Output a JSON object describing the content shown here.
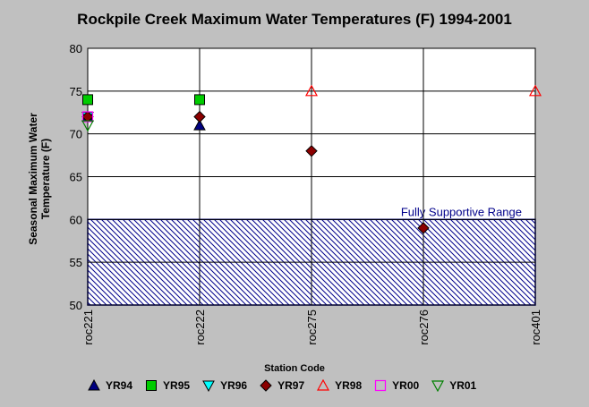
{
  "chart_data": {
    "type": "scatter",
    "title": "Rockpile Creek Maximum Water Temperatures (F) 1994-2001",
    "xlabel": "Station Code",
    "ylabel_lines": [
      "Seasonal Maximum Water",
      "Temperature  (F)"
    ],
    "categories": [
      "roc221",
      "roc222",
      "roc275",
      "roc276",
      "roc401"
    ],
    "ylim": [
      50,
      80
    ],
    "yticks": [
      50,
      55,
      60,
      65,
      70,
      75,
      80
    ],
    "grid": true,
    "band": {
      "label": "Fully Supportive Range",
      "from": 50,
      "to": 60,
      "color": "#00008b"
    },
    "legend_position": "bottom",
    "series": [
      {
        "name": "YR94",
        "marker": "triangle-up",
        "color": "#000080",
        "filled": true,
        "values": [
          72,
          71,
          null,
          null,
          null
        ]
      },
      {
        "name": "YR95",
        "marker": "square",
        "color": "#00cc00",
        "filled": true,
        "values": [
          74,
          74,
          null,
          null,
          null
        ]
      },
      {
        "name": "YR96",
        "marker": "triangle-down",
        "color": "#00ffff",
        "filled": true,
        "values": [
          72,
          null,
          null,
          null,
          null
        ]
      },
      {
        "name": "YR97",
        "marker": "diamond",
        "color": "#8b0000",
        "filled": true,
        "values": [
          72,
          72,
          68,
          59,
          null
        ]
      },
      {
        "name": "YR98",
        "marker": "triangle-up",
        "color": "#ff0000",
        "filled": false,
        "values": [
          null,
          null,
          75,
          null,
          75
        ]
      },
      {
        "name": "YR00",
        "marker": "square",
        "color": "#ff00ff",
        "filled": false,
        "values": [
          72,
          null,
          null,
          null,
          null
        ]
      },
      {
        "name": "YR01",
        "marker": "triangle-down",
        "color": "#008000",
        "filled": false,
        "values": [
          71,
          null,
          null,
          null,
          null
        ]
      }
    ]
  }
}
